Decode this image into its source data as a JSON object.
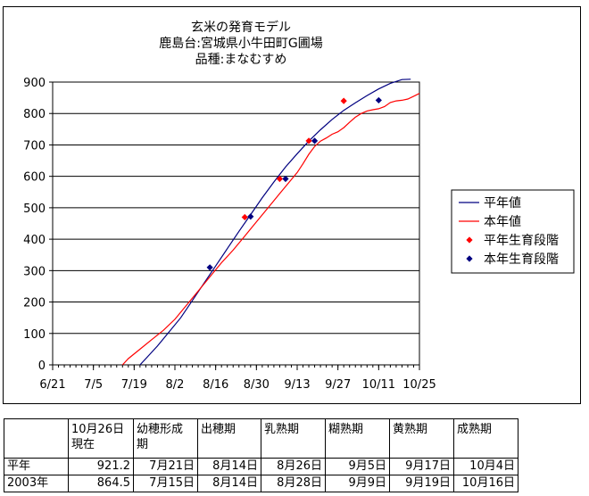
{
  "chart_data": {
    "type": "line",
    "title_lines": [
      "玄米の発育モデル",
      "鹿島台:宮城県小牛田町G圃場",
      "品種:まなむすめ"
    ],
    "x_ticks": [
      "6/21",
      "7/5",
      "7/19",
      "8/2",
      "8/16",
      "8/30",
      "9/13",
      "9/27",
      "10/11",
      "10/25"
    ],
    "x_unit": "days",
    "x_range": [
      0,
      126
    ],
    "ylim": [
      0,
      900
    ],
    "y_ticks": [
      0,
      100,
      200,
      300,
      400,
      500,
      600,
      700,
      800,
      900
    ],
    "grid": "horizontal",
    "legend_position": "right",
    "series": [
      {
        "name": "平年値",
        "kind": "line",
        "color": "#000080",
        "points": [
          [
            30,
            0
          ],
          [
            32,
            20
          ],
          [
            36,
            60
          ],
          [
            40,
            105
          ],
          [
            44,
            150
          ],
          [
            48,
            205
          ],
          [
            52,
            260
          ],
          [
            56,
            315
          ],
          [
            60,
            370
          ],
          [
            64,
            425
          ],
          [
            68,
            478
          ],
          [
            72,
            532
          ],
          [
            76,
            582
          ],
          [
            80,
            630
          ],
          [
            84,
            672
          ],
          [
            88,
            712
          ],
          [
            92,
            748
          ],
          [
            96,
            781
          ],
          [
            100,
            810
          ],
          [
            104,
            834
          ],
          [
            108,
            857
          ],
          [
            112,
            878
          ],
          [
            116,
            896
          ],
          [
            120,
            908
          ],
          [
            123,
            909
          ]
        ]
      },
      {
        "name": "本年値",
        "kind": "line",
        "color": "#ff0000",
        "points": [
          [
            24,
            0
          ],
          [
            26,
            20
          ],
          [
            30,
            50
          ],
          [
            34,
            80
          ],
          [
            38,
            110
          ],
          [
            42,
            145
          ],
          [
            46,
            190
          ],
          [
            50,
            235
          ],
          [
            54,
            280
          ],
          [
            58,
            325
          ],
          [
            62,
            365
          ],
          [
            66,
            410
          ],
          [
            70,
            455
          ],
          [
            74,
            500
          ],
          [
            78,
            545
          ],
          [
            82,
            590
          ],
          [
            84,
            612
          ],
          [
            86,
            640
          ],
          [
            88,
            670
          ],
          [
            90,
            695
          ],
          [
            92,
            712
          ],
          [
            94,
            722
          ],
          [
            96,
            734
          ],
          [
            98,
            742
          ],
          [
            100,
            755
          ],
          [
            102,
            772
          ],
          [
            104,
            788
          ],
          [
            106,
            800
          ],
          [
            108,
            808
          ],
          [
            110,
            812
          ],
          [
            112,
            815
          ],
          [
            114,
            822
          ],
          [
            116,
            835
          ],
          [
            118,
            840
          ],
          [
            120,
            842
          ],
          [
            122,
            846
          ],
          [
            124,
            855
          ],
          [
            126,
            864
          ]
        ]
      },
      {
        "name": "平年生育段階",
        "kind": "marker",
        "color": "#ff0000",
        "points": [
          [
            66,
            470
          ],
          [
            78,
            592
          ],
          [
            88,
            713
          ],
          [
            100,
            840
          ]
        ]
      },
      {
        "name": "本年生育段階",
        "kind": "marker",
        "color": "#000080",
        "points": [
          [
            54,
            310
          ],
          [
            68,
            472
          ],
          [
            80,
            592
          ],
          [
            90,
            713
          ],
          [
            112,
            842
          ]
        ]
      }
    ]
  },
  "table": {
    "headers": [
      "",
      "10月26日\n現在",
      "幼穂形成\n期",
      "出穂期",
      "乳熟期",
      "糊熟期",
      "黄熟期",
      "成熟期"
    ],
    "rows": [
      [
        "平年",
        "921.2",
        "7月21日",
        "8月14日",
        "8月26日",
        "9月5日",
        "9月17日",
        "10月4日"
      ],
      [
        "2003年",
        "864.5",
        "7月15日",
        "8月14日",
        "8月28日",
        "9月9日",
        "9月19日",
        "10月16日"
      ]
    ]
  }
}
